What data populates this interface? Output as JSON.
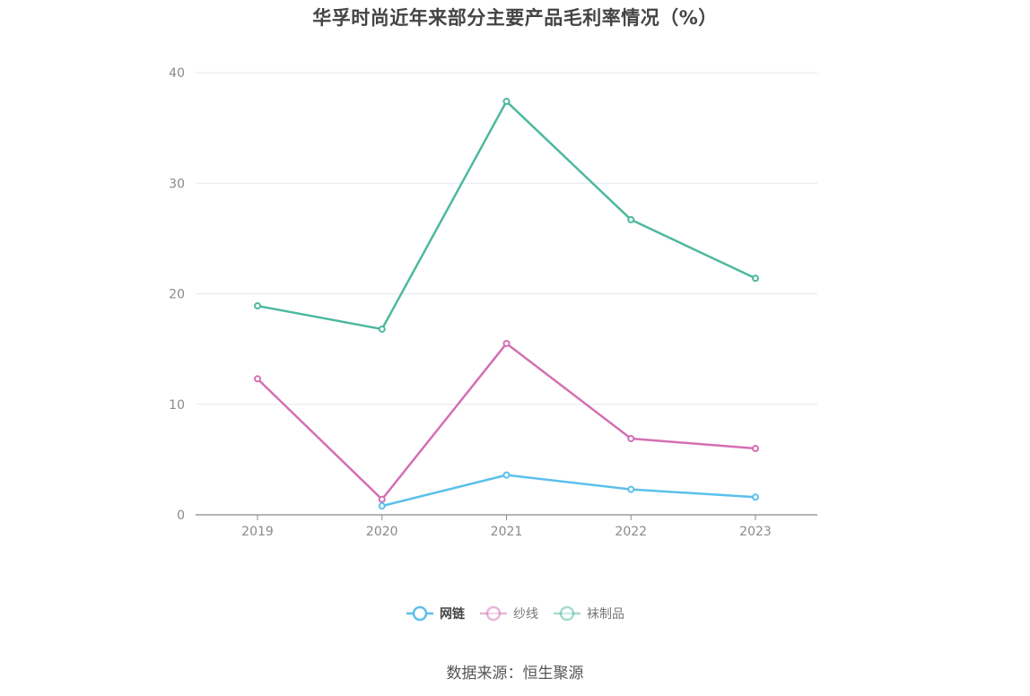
{
  "chart_data": {
    "type": "line",
    "title": "华孚时尚近年来部分主要产品毛利率情况（%）",
    "categories": [
      "2019",
      "2020",
      "2021",
      "2022",
      "2023"
    ],
    "series": [
      {
        "name": "网链",
        "values": [
          null,
          0.8,
          3.6,
          2.3,
          1.6
        ],
        "color": "#5bc0eb",
        "active": true
      },
      {
        "name": "纱线",
        "values": [
          12.3,
          1.4,
          15.5,
          6.9,
          6.0
        ],
        "color": "#d46fb4",
        "active": false
      },
      {
        "name": "袜制品",
        "values": [
          18.9,
          16.8,
          37.4,
          26.7,
          21.4
        ],
        "color": "#4db89e",
        "active": false
      }
    ],
    "y_ticks": [
      "0",
      "10",
      "20",
      "30",
      "40"
    ],
    "ylim": [
      0,
      40
    ],
    "grid": true,
    "legend_position": "bottom-center",
    "xlabel": "",
    "ylabel": ""
  },
  "source": "数据来源：恒生聚源",
  "colors": {
    "grid": "#e4e7f0",
    "axis": "#8a8a8a",
    "tick_text": "#8a8a8a"
  },
  "icons": {
    "legend_marker": "circle-line-icon"
  }
}
